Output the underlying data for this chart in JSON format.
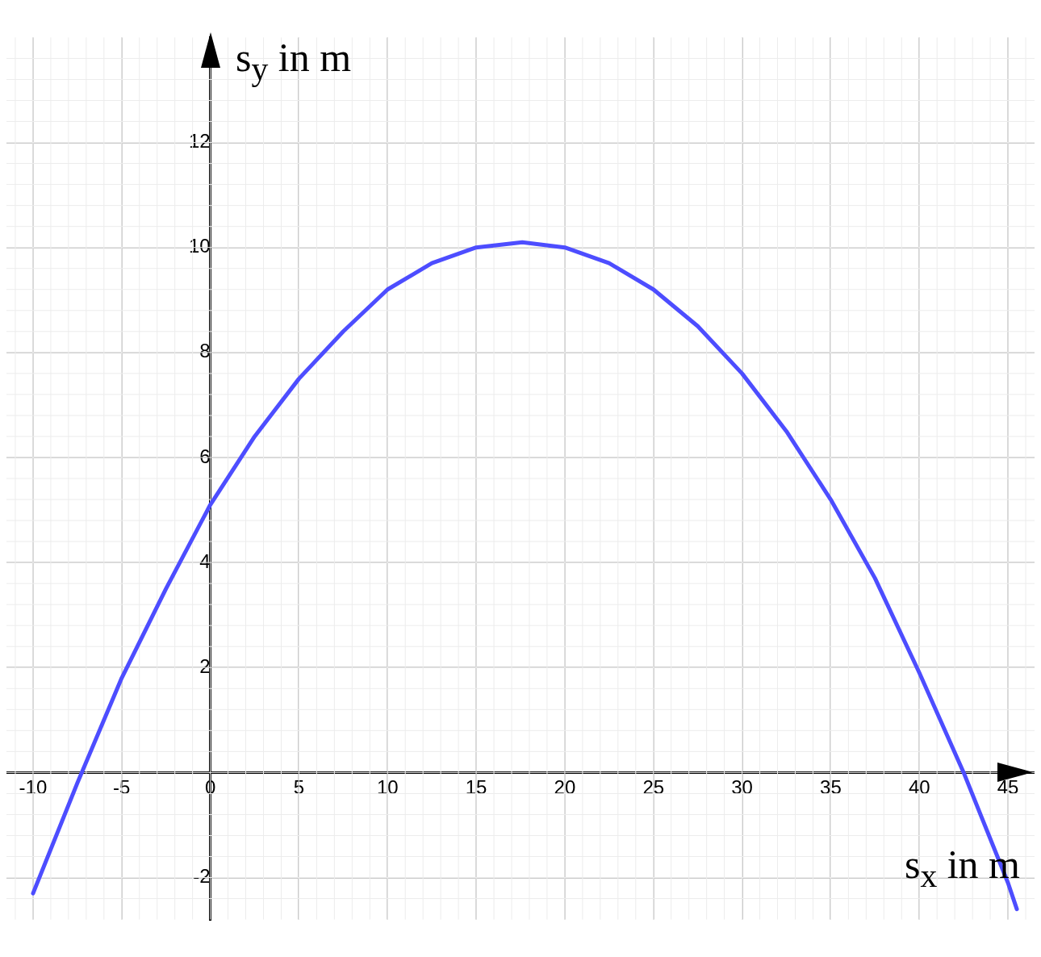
{
  "chart_data": {
    "type": "line",
    "xlabel": "s$_{x}$ in m",
    "ylabel": "s$_{y}$ in m",
    "xlim": [
      -11.5,
      46.5
    ],
    "ylim": [
      -2.8,
      14
    ],
    "xticks": [
      -10,
      -5,
      0,
      5,
      10,
      15,
      20,
      25,
      30,
      35,
      40,
      45
    ],
    "yticks": [
      -2,
      2,
      4,
      6,
      8,
      10,
      12
    ],
    "grid": true,
    "marker": "none",
    "line_style": "solid",
    "series": [
      {
        "color": "#4d4dff",
        "x": [
          -10,
          -7.5,
          -5,
          -2.5,
          0,
          2.5,
          5,
          7.5,
          10,
          12.5,
          15,
          17.6,
          20,
          22.5,
          25,
          27.5,
          30,
          32.5,
          35,
          37.5,
          40,
          42.5,
          45,
          45.5
        ],
        "values": [
          -2.3,
          -0.2,
          1.8,
          3.5,
          5.1,
          6.4,
          7.5,
          8.4,
          9.2,
          9.7,
          10,
          10.1,
          10,
          9.7,
          9.2,
          8.5,
          7.6,
          6.5,
          5.2,
          3.7,
          1.9,
          0,
          -2.1,
          -2.6
        ]
      }
    ]
  }
}
